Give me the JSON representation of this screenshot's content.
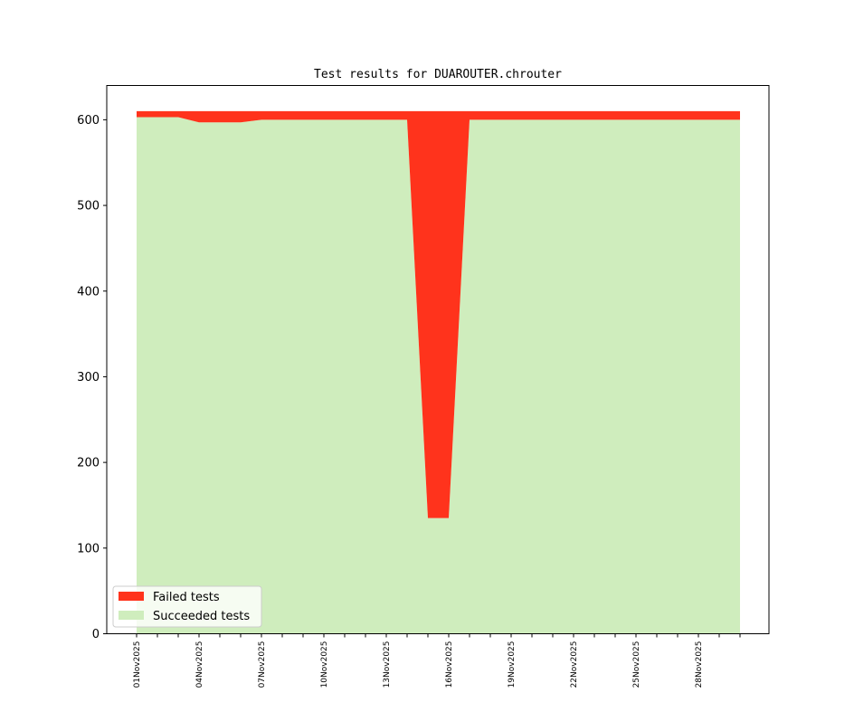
{
  "chart_data": {
    "type": "area",
    "stacked": true,
    "title": "Test results for DUAROUTER.chrouter",
    "xlabel": "",
    "ylabel": "",
    "ylim": [
      0,
      640
    ],
    "yticks": [
      0,
      100,
      200,
      300,
      400,
      500,
      600
    ],
    "x": [
      "01Nov2025",
      "02Nov2025",
      "03Nov2025",
      "04Nov2025",
      "05Nov2025",
      "06Nov2025",
      "07Nov2025",
      "08Nov2025",
      "09Nov2025",
      "10Nov2025",
      "11Nov2025",
      "12Nov2025",
      "13Nov2025",
      "14Nov2025",
      "15Nov2025",
      "16Nov2025",
      "17Nov2025",
      "18Nov2025",
      "19Nov2025",
      "20Nov2025",
      "21Nov2025",
      "22Nov2025",
      "23Nov2025",
      "24Nov2025",
      "25Nov2025",
      "26Nov2025",
      "27Nov2025",
      "28Nov2025",
      "29Nov2025",
      "30Nov2025"
    ],
    "xtick_labels": [
      "01Nov2025",
      "04Nov2025",
      "07Nov2025",
      "10Nov2025",
      "13Nov2025",
      "16Nov2025",
      "19Nov2025",
      "22Nov2025",
      "25Nov2025",
      "28Nov2025"
    ],
    "legend_position": "lower-left",
    "series": [
      {
        "name": "Succeeded tests",
        "color": "#cfedbd",
        "values": [
          603,
          603,
          603,
          597,
          597,
          597,
          600,
          600,
          600,
          600,
          600,
          600,
          600,
          600,
          135,
          135,
          600,
          600,
          600,
          600,
          600,
          600,
          600,
          600,
          600,
          600,
          600,
          600,
          600,
          600
        ]
      },
      {
        "name": "Failed tests",
        "color": "#ff331c",
        "values": [
          7,
          7,
          7,
          13,
          13,
          13,
          10,
          10,
          10,
          10,
          10,
          10,
          10,
          10,
          475,
          475,
          10,
          10,
          10,
          10,
          10,
          10,
          10,
          10,
          10,
          10,
          10,
          10,
          10,
          10
        ]
      }
    ]
  }
}
